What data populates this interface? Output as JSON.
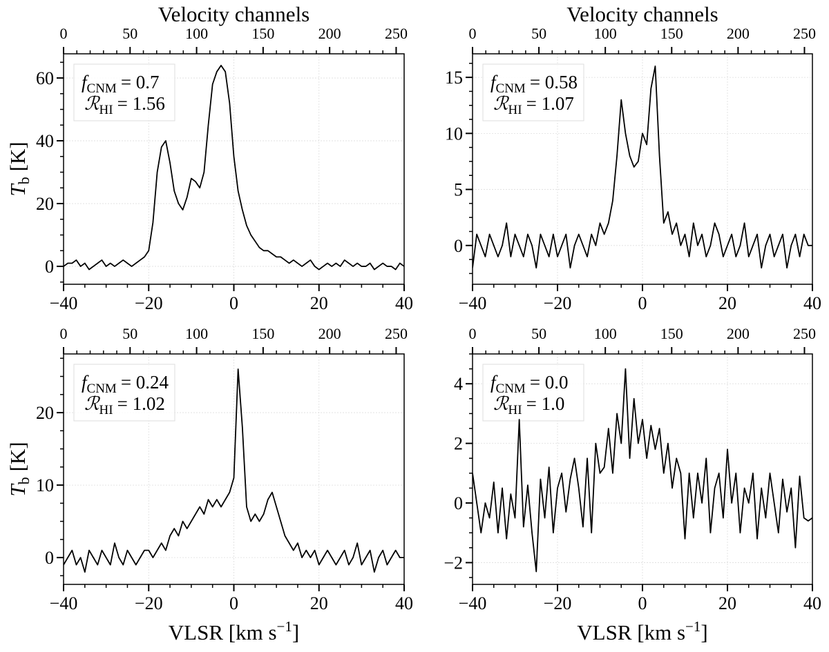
{
  "chart_data": [
    {
      "type": "line",
      "x2label": "Velocity channels",
      "ylabel": {
        "symbol": "T",
        "sub": "b",
        "text": "[K]"
      },
      "annotation": [
        {
          "symbol": "f",
          "sub": "CNM",
          "text": "= 0.7"
        },
        {
          "symbol": "ℛ",
          "sub": "HI",
          "text": "= 1.56"
        }
      ],
      "color": "#000000",
      "grid": true,
      "xlim": [
        -40,
        40
      ],
      "xticks": [
        {
          "value": -40,
          "label": "−40"
        },
        {
          "value": -20,
          "label": "−20"
        },
        0,
        20,
        40
      ],
      "x2lim": [
        0,
        256
      ],
      "x2ticks": [
        0,
        50,
        100,
        150,
        200,
        250
      ],
      "ylim": [
        -5.7,
        67.7
      ],
      "yticks": [
        0,
        20,
        40,
        60
      ],
      "x": [
        -40,
        -39,
        -38,
        -37,
        -36,
        -35,
        -34,
        -33,
        -32,
        -31,
        -30,
        -29,
        -28,
        -27,
        -26,
        -25,
        -24,
        -23,
        -22,
        -21,
        -20,
        -19,
        -18,
        -17,
        -16,
        -15,
        -14,
        -13,
        -12,
        -11,
        -10,
        -9,
        -8,
        -7,
        -6,
        -5,
        -4,
        -3,
        -2,
        -1,
        0,
        1,
        2,
        3,
        4,
        5,
        6,
        7,
        8,
        9,
        10,
        11,
        12,
        13,
        14,
        15,
        16,
        17,
        18,
        19,
        20,
        21,
        22,
        23,
        24,
        25,
        26,
        27,
        28,
        29,
        30,
        31,
        32,
        33,
        34,
        35,
        36,
        37,
        38,
        39,
        40
      ],
      "values": [
        0,
        1,
        1,
        2,
        0,
        1,
        -1,
        0,
        1,
        2,
        0,
        1,
        0,
        1,
        2,
        1,
        0,
        1,
        2,
        3,
        5,
        14,
        30,
        38,
        40,
        33,
        24,
        20,
        18,
        22,
        28,
        27,
        25,
        30,
        45,
        58,
        62,
        64,
        62,
        52,
        35,
        24,
        18,
        13,
        10,
        8,
        6,
        5,
        5,
        4,
        3,
        3,
        2,
        1,
        2,
        1,
        0,
        1,
        2,
        0,
        -1,
        0,
        1,
        0,
        1,
        0,
        2,
        1,
        0,
        1,
        0,
        0,
        1,
        -1,
        0,
        1,
        0,
        0,
        -1,
        1,
        0
      ]
    },
    {
      "type": "line",
      "x2label": "Velocity channels",
      "annotation": [
        {
          "symbol": "f",
          "sub": "CNM",
          "text": "= 0.58"
        },
        {
          "symbol": "ℛ",
          "sub": "HI",
          "text": "= 1.07"
        }
      ],
      "color": "#000000",
      "grid": true,
      "xlim": [
        -40,
        40
      ],
      "xticks": [
        {
          "value": -40,
          "label": "−40"
        },
        {
          "value": -20,
          "label": "−20"
        },
        0,
        20,
        40
      ],
      "x2lim": [
        0,
        256
      ],
      "x2ticks": [
        0,
        50,
        100,
        150,
        200,
        250
      ],
      "ylim": [
        -3.46,
        17.1
      ],
      "yticks": [
        0,
        5,
        10,
        15
      ],
      "x": [
        -40,
        -39,
        -38,
        -37,
        -36,
        -35,
        -34,
        -33,
        -32,
        -31,
        -30,
        -29,
        -28,
        -27,
        -26,
        -25,
        -24,
        -23,
        -22,
        -21,
        -20,
        -19,
        -18,
        -17,
        -16,
        -15,
        -14,
        -13,
        -12,
        -11,
        -10,
        -9,
        -8,
        -7,
        -6,
        -5,
        -4,
        -3,
        -2,
        -1,
        0,
        1,
        2,
        3,
        4,
        5,
        6,
        7,
        8,
        9,
        10,
        11,
        12,
        13,
        14,
        15,
        16,
        17,
        18,
        19,
        20,
        21,
        22,
        23,
        24,
        25,
        26,
        27,
        28,
        29,
        30,
        31,
        32,
        33,
        34,
        35,
        36,
        37,
        38,
        39,
        40
      ],
      "values": [
        -2,
        1,
        0,
        -1,
        1,
        0,
        -1,
        0,
        2,
        -1,
        1,
        0,
        -1,
        1,
        0,
        -2,
        1,
        0,
        -1,
        1,
        -1,
        0,
        1,
        -2,
        0,
        1,
        0,
        -1,
        1,
        0,
        2,
        1,
        2,
        4,
        8,
        13,
        10,
        8,
        7,
        7.5,
        10,
        9,
        14,
        16,
        8,
        2,
        3,
        1,
        2,
        0,
        1,
        -1,
        2,
        0,
        1,
        -1,
        0,
        2,
        1,
        -1,
        0,
        1,
        -1,
        0,
        2,
        -1,
        0,
        1,
        -2,
        0,
        1,
        -1,
        0,
        1,
        -2,
        0,
        1,
        -1,
        1,
        0,
        0
      ]
    },
    {
      "type": "line",
      "xlabel": {
        "text": "VLSR [km s",
        "sup": "−1",
        "end": "]"
      },
      "ylabel": {
        "symbol": "T",
        "sub": "b",
        "text": "[K]"
      },
      "annotation": [
        {
          "symbol": "f",
          "sub": "CNM",
          "text": "= 0.24"
        },
        {
          "symbol": "ℛ",
          "sub": "HI",
          "text": "= 1.02"
        }
      ],
      "color": "#000000",
      "grid": true,
      "xlim": [
        -40,
        40
      ],
      "xticks": [
        {
          "value": -40,
          "label": "−40"
        },
        {
          "value": -20,
          "label": "−20"
        },
        0,
        20,
        40
      ],
      "x2lim": [
        0,
        256
      ],
      "x2ticks": [
        0,
        50,
        100,
        150,
        200,
        250
      ],
      "ylim": [
        -3.7,
        28.1
      ],
      "yticks": [
        0,
        10,
        20
      ],
      "x": [
        -40,
        -39,
        -38,
        -37,
        -36,
        -35,
        -34,
        -33,
        -32,
        -31,
        -30,
        -29,
        -28,
        -27,
        -26,
        -25,
        -24,
        -23,
        -22,
        -21,
        -20,
        -19,
        -18,
        -17,
        -16,
        -15,
        -14,
        -13,
        -12,
        -11,
        -10,
        -9,
        -8,
        -7,
        -6,
        -5,
        -4,
        -3,
        -2,
        -1,
        0,
        1,
        2,
        3,
        4,
        5,
        6,
        7,
        8,
        9,
        10,
        11,
        12,
        13,
        14,
        15,
        16,
        17,
        18,
        19,
        20,
        21,
        22,
        23,
        24,
        25,
        26,
        27,
        28,
        29,
        30,
        31,
        32,
        33,
        34,
        35,
        36,
        37,
        38,
        39,
        40
      ],
      "values": [
        -1,
        0,
        1,
        -1,
        0,
        -2,
        1,
        0,
        -1,
        1,
        0,
        -1,
        2,
        0,
        -1,
        1,
        0,
        -1,
        0,
        1,
        1,
        0,
        1,
        2,
        1,
        3,
        4,
        3,
        5,
        4,
        5,
        6,
        7,
        6,
        8,
        7,
        8,
        7,
        8,
        9,
        11,
        26,
        18,
        7,
        5,
        6,
        5,
        6,
        8,
        9,
        7,
        5,
        3,
        2,
        1,
        2,
        0,
        1,
        0,
        1,
        -1,
        0,
        1,
        0,
        -1,
        0,
        1,
        -1,
        0,
        2,
        -1,
        0,
        1,
        -2,
        0,
        1,
        -1,
        0,
        1,
        0,
        0
      ]
    },
    {
      "type": "line",
      "xlabel": {
        "text": "VLSR [km s",
        "sup": "−1",
        "end": "]"
      },
      "annotation": [
        {
          "symbol": "f",
          "sub": "CNM",
          "text": "= 0.0"
        },
        {
          "symbol": "ℛ",
          "sub": "HI",
          "text": "= 1.0"
        }
      ],
      "color": "#000000",
      "grid": true,
      "xlim": [
        -40,
        40
      ],
      "xticks": [
        {
          "value": -40,
          "label": "−40"
        },
        {
          "value": -20,
          "label": "−20"
        },
        0,
        20,
        40
      ],
      "x2lim": [
        0,
        256
      ],
      "x2ticks": [
        0,
        50,
        100,
        150,
        200,
        250
      ],
      "ylim": [
        -2.73,
        5.0
      ],
      "yticks": [
        {
          "value": -2,
          "label": "−2"
        },
        0,
        2,
        4
      ],
      "x": [
        -40,
        -39,
        -38,
        -37,
        -36,
        -35,
        -34,
        -33,
        -32,
        -31,
        -30,
        -29,
        -28,
        -27,
        -26,
        -25,
        -24,
        -23,
        -22,
        -21,
        -20,
        -19,
        -18,
        -17,
        -16,
        -15,
        -14,
        -13,
        -12,
        -11,
        -10,
        -9,
        -8,
        -7,
        -6,
        -5,
        -4,
        -3,
        -2,
        -1,
        0,
        1,
        2,
        3,
        4,
        5,
        6,
        7,
        8,
        9,
        10,
        11,
        12,
        13,
        14,
        15,
        16,
        17,
        18,
        19,
        20,
        21,
        22,
        23,
        24,
        25,
        26,
        27,
        28,
        29,
        30,
        31,
        32,
        33,
        34,
        35,
        36,
        37,
        38,
        39,
        40
      ],
      "values": [
        1,
        0,
        -1,
        0,
        -0.5,
        0.7,
        -1,
        0.5,
        -1.2,
        0.3,
        -0.5,
        2.8,
        -0.8,
        0.6,
        -1,
        -2.3,
        0.8,
        -0.5,
        1.2,
        -1,
        0.5,
        1,
        -0.3,
        0.8,
        1.5,
        0.5,
        -0.8,
        1.5,
        -1,
        2,
        1,
        1.2,
        2.5,
        1,
        3,
        2,
        4.5,
        1.5,
        3.5,
        2,
        2.8,
        1.5,
        2.6,
        1.8,
        2.5,
        1,
        2,
        0.5,
        1.5,
        1,
        -1.2,
        1,
        -0.5,
        1,
        0,
        1.5,
        -1,
        0.5,
        1,
        -0.5,
        1.8,
        0,
        1,
        -1,
        0.5,
        0,
        1,
        -1.2,
        0.5,
        -0.5,
        1,
        0,
        -1,
        0.8,
        -0.3,
        0.5,
        -1.5,
        0.9,
        -0.5,
        -0.6,
        -0.5
      ]
    }
  ]
}
